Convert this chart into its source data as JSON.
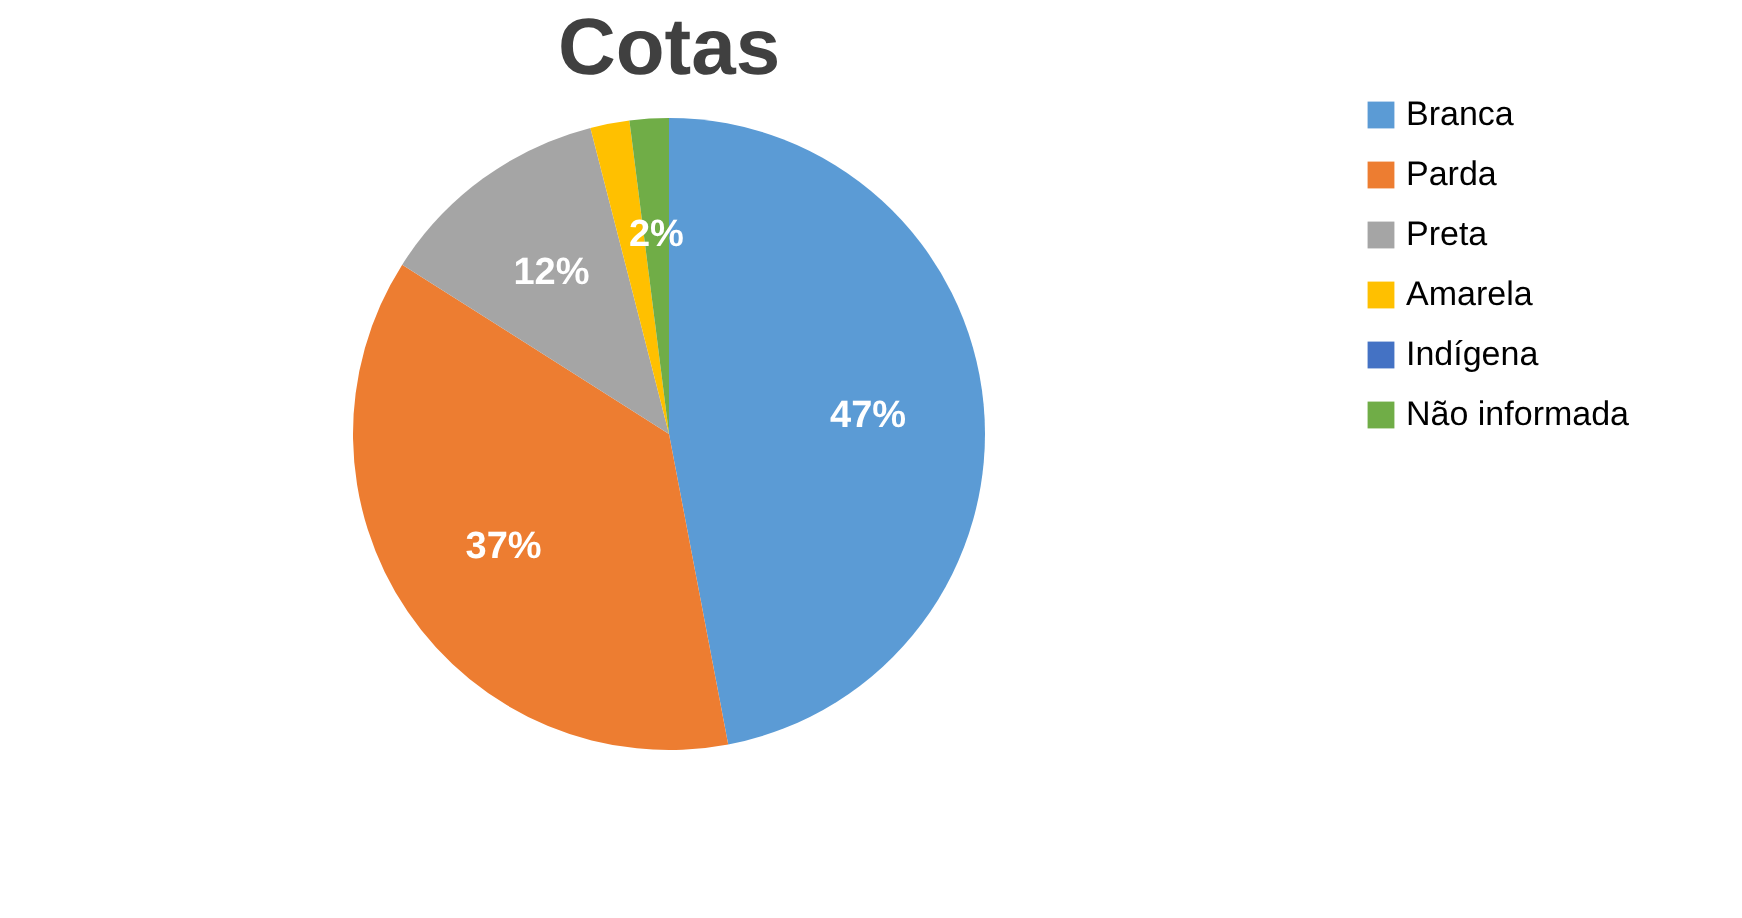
{
  "chart_data": {
    "type": "pie",
    "title": "Cotas",
    "categories": [
      "Branca",
      "Parda",
      "Preta",
      "Amarela",
      "Indígena",
      "Não informada"
    ],
    "values": [
      47,
      37,
      12,
      2,
      0,
      2
    ],
    "value_labels": [
      "47%",
      "37%",
      "12%",
      null,
      null,
      "2%"
    ],
    "colors": [
      "#5b9bd5",
      "#ed7d31",
      "#a5a5a5",
      "#ffc000",
      "#4472c4",
      "#70ad47"
    ],
    "legend": "right"
  }
}
